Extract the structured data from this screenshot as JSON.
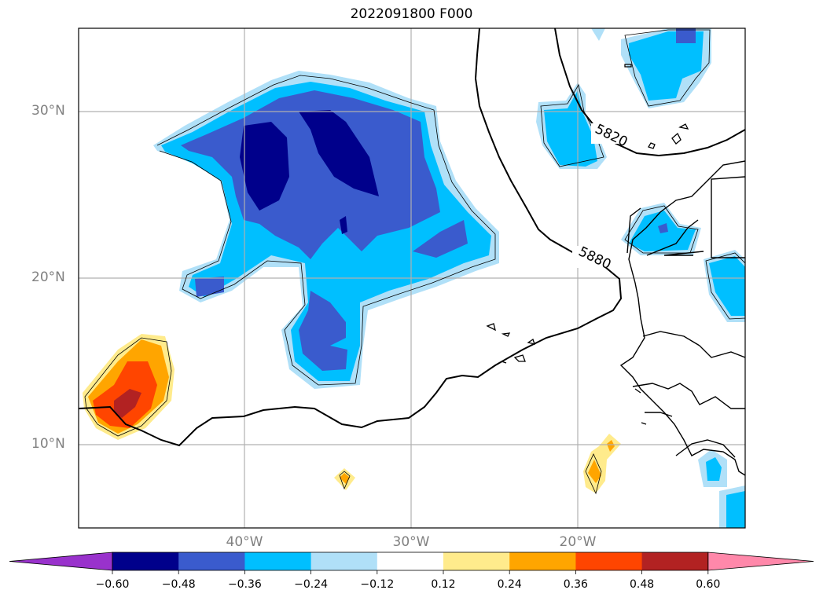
{
  "title": "2022091800 F000",
  "map": {
    "lat_labels": [
      "30°N",
      "20°N",
      "10°N"
    ],
    "lon_labels": [
      "40°W",
      "30°W",
      "20°W"
    ],
    "contour_labels": [
      "5820",
      "5880"
    ]
  },
  "colorbar": {
    "ticks": [
      "−0.60",
      "−0.48",
      "−0.36",
      "−0.24",
      "−0.12",
      "0.12",
      "0.24",
      "0.36",
      "0.48",
      "0.60"
    ],
    "colors": [
      "#9932cc",
      "#00008b",
      "#3a5bcd",
      "#00bfff",
      "#b0e0f8",
      "#ffffff",
      "#ffeb8c",
      "#ffa500",
      "#ff4500",
      "#b22222",
      "#ff88aa"
    ]
  }
}
